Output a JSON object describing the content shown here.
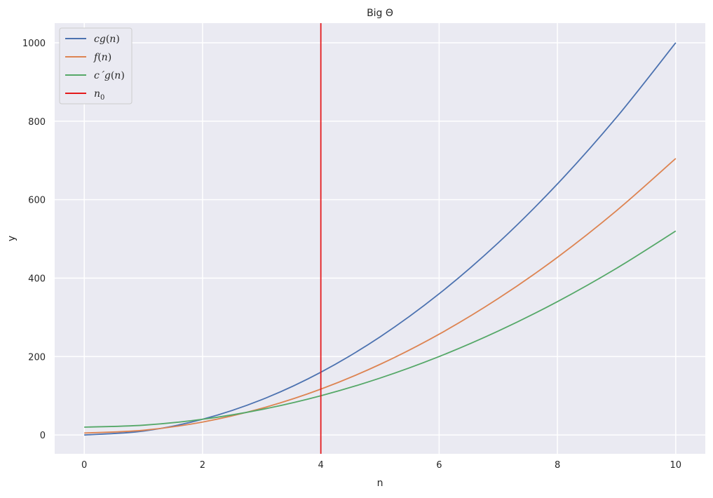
{
  "chart_data": {
    "type": "line",
    "title": "Big Θ",
    "xlabel": "n",
    "ylabel": "y",
    "xlim": [
      -0.5,
      10.5
    ],
    "ylim": [
      -48,
      1050
    ],
    "grid": true,
    "legend_position": "top-left",
    "x_ticks": [
      0,
      2,
      4,
      6,
      8,
      10
    ],
    "x_tick_labels": [
      "0",
      "2",
      "4",
      "6",
      "8",
      "10"
    ],
    "y_ticks": [
      0,
      200,
      400,
      600,
      800,
      1000
    ],
    "y_tick_labels": [
      "0",
      "200",
      "400",
      "600",
      "800",
      "1000"
    ],
    "x": [
      0,
      1,
      2,
      3,
      4,
      5,
      6,
      7,
      8,
      9,
      10
    ],
    "series": [
      {
        "name": "cg(n)",
        "legend": {
          "base": "cg(",
          "arg": "n",
          "tail": ")"
        },
        "color": "#4c72b0",
        "values": [
          0,
          10,
          40,
          90,
          160,
          250,
          360,
          490,
          640,
          810,
          1000
        ]
      },
      {
        "name": "f(n)",
        "legend": {
          "base": "f(",
          "arg": "n",
          "tail": ")"
        },
        "color": "#dd8452",
        "values": [
          5,
          12,
          33,
          68,
          117,
          180,
          257,
          348,
          453,
          572,
          705
        ]
      },
      {
        "name": "c´g(n)",
        "legend": {
          "base": "c´g(",
          "arg": "n",
          "tail": ")"
        },
        "color": "#55a868",
        "values": [
          20,
          25,
          40,
          65,
          100,
          145,
          200,
          265,
          340,
          425,
          520
        ]
      }
    ],
    "vertical_lines": [
      {
        "name": "n0",
        "legend": {
          "base": "n",
          "sub": "0"
        },
        "x": 4,
        "color": "#e41a1c"
      }
    ]
  }
}
